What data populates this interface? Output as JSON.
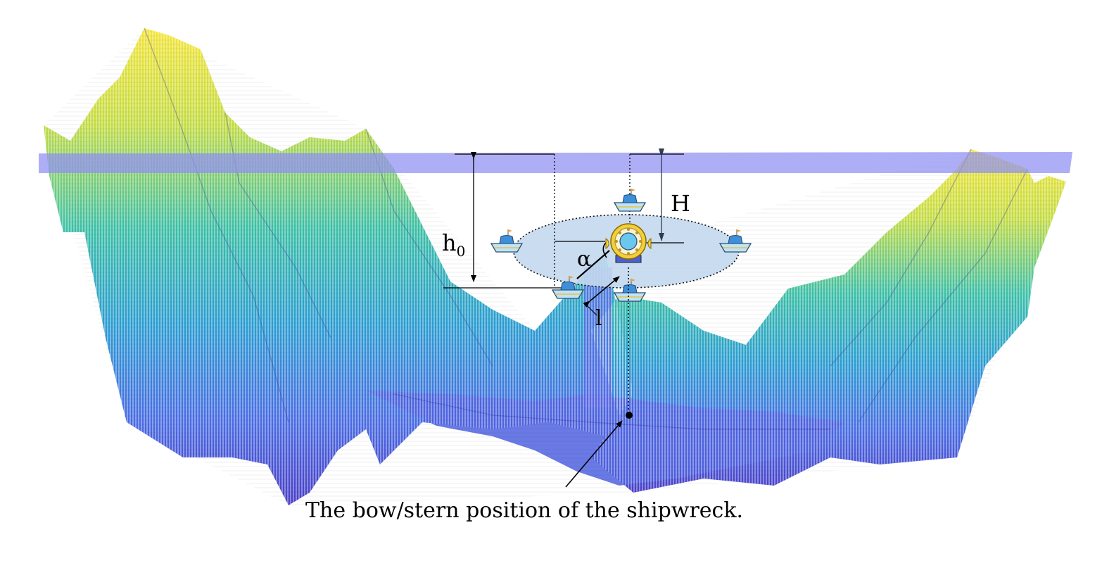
{
  "labels": {
    "h0": "h",
    "h0_sub": "0",
    "H": "H",
    "alpha": "α",
    "l": "l",
    "caption": "The bow/stern position of the shipwreck."
  },
  "colors": {
    "sea_surface": "#8f8ff2",
    "search_area": "#c3d8ee",
    "terrain_high": "#f5e63a",
    "terrain_mid": "#2ab3c0",
    "terrain_low": "#4a3fc8",
    "ship_hull": "#bfe3f8",
    "ship_cabin": "#3f8fd8"
  },
  "icons": {
    "ship": "ship-icon",
    "submersible": "submersible-icon",
    "wreck_point": "wreck-point-icon"
  }
}
